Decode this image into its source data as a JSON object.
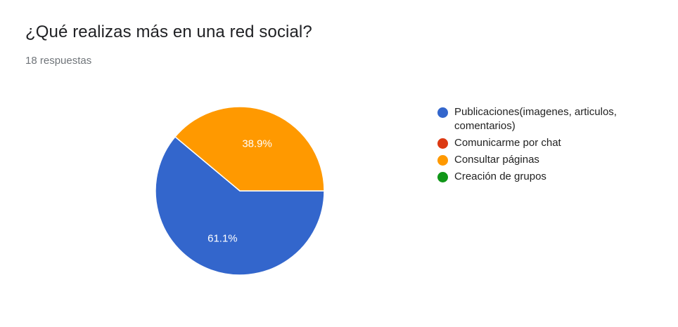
{
  "header": {
    "title": "¿Qué realizas más en una red social?",
    "subtitle": "18 respuestas"
  },
  "chart_data": {
    "type": "pie",
    "title": "¿Qué realizas más en una red social?",
    "subtitle": "18 respuestas",
    "legend_position": "right",
    "slices": [
      {
        "label": "Publicaciones(imagenes, articulos, comentarios)",
        "value": 61.1,
        "display": "61.1%",
        "color": "#3366cc"
      },
      {
        "label": "Comunicarme por chat",
        "value": 0,
        "display": "",
        "color": "#dc3912"
      },
      {
        "label": "Consultar páginas",
        "value": 38.9,
        "display": "38.9%",
        "color": "#ff9900"
      },
      {
        "label": "Creación de grupos",
        "value": 0,
        "display": "",
        "color": "#109618"
      }
    ]
  }
}
